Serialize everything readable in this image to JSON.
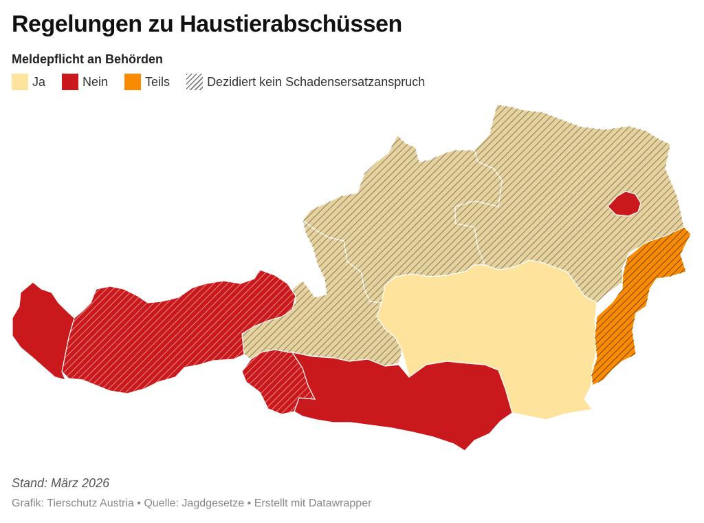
{
  "title": "Regelungen zu Haustierabschüssen",
  "subtitle": "Meldepflicht an Behörden",
  "legend": [
    {
      "label": "Ja",
      "color": "#fde39c"
    },
    {
      "label": "Nein",
      "color": "#c9191c"
    },
    {
      "label": "Teils",
      "color": "#f98b02"
    },
    {
      "label": "Dezidiert kein Schadensersatzanspruch",
      "pattern": "hatched"
    }
  ],
  "states": [
    {
      "name": "Vorarlberg",
      "category": "Nein",
      "hatched": false
    },
    {
      "name": "Tirol",
      "category": "Nein",
      "hatched": true
    },
    {
      "name": "Osttirol",
      "category": "Nein",
      "hatched": true
    },
    {
      "name": "Salzburg",
      "category": "Ja",
      "hatched": true
    },
    {
      "name": "Oberösterreich",
      "category": "Ja",
      "hatched": true
    },
    {
      "name": "Niederösterreich",
      "category": "Ja",
      "hatched": true
    },
    {
      "name": "Wien",
      "category": "Nein",
      "hatched": false
    },
    {
      "name": "Burgenland",
      "category": "Teils",
      "hatched": true
    },
    {
      "name": "Steiermark",
      "category": "Ja",
      "hatched": false
    },
    {
      "name": "Kärnten",
      "category": "Nein",
      "hatched": false
    }
  ],
  "footer": {
    "stand": "Stand: März 2026",
    "source": "Grafik: Tierschutz Austria • Quelle: Jagdgesetze • Erstellt mit Datawrapper"
  }
}
